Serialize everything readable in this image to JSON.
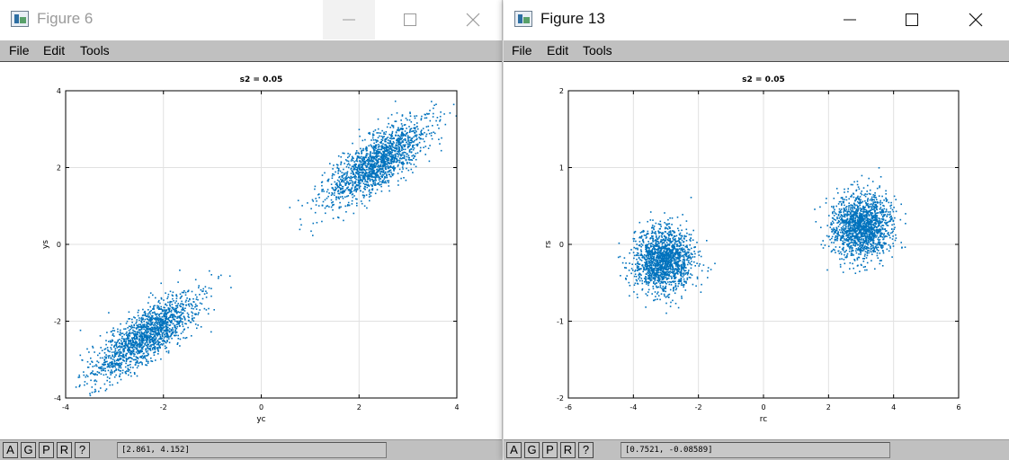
{
  "windows": [
    {
      "title": "Figure 6",
      "active": false,
      "menu": [
        "File",
        "Edit",
        "Tools"
      ],
      "statusbar": {
        "buttons": [
          "A",
          "G",
          "P",
          "R",
          "?"
        ],
        "coords": "[2.861, 4.152]"
      },
      "chart_data": {
        "type": "scatter",
        "title": "s2 = 0.05",
        "xlabel": "yc",
        "ylabel": "ys",
        "xlim": [
          -4,
          4
        ],
        "ylim": [
          -4,
          4
        ],
        "xticks": [
          -4,
          -2,
          0,
          2,
          4
        ],
        "yticks": [
          -4,
          -2,
          0,
          2,
          4
        ],
        "grid": true,
        "color": "#0072bd",
        "series": [
          {
            "clusters": [
              {
                "center": [
                  -2.35,
                  -2.35
                ],
                "spread_along": 0.65,
                "spread_across": 0.22,
                "slope": 1.0,
                "n": 1600
              },
              {
                "center": [
                  2.35,
                  2.15
                ],
                "spread_along": 0.65,
                "spread_across": 0.22,
                "slope": 1.0,
                "n": 1600
              }
            ]
          }
        ]
      }
    },
    {
      "title": "Figure 13",
      "active": true,
      "menu": [
        "File",
        "Edit",
        "Tools"
      ],
      "statusbar": {
        "buttons": [
          "A",
          "G",
          "P",
          "R",
          "?"
        ],
        "coords": "[0.7521, -0.08589]"
      },
      "chart_data": {
        "type": "scatter",
        "title": "s2 = 0.05",
        "xlabel": "rc",
        "ylabel": "rs",
        "xlim": [
          -6,
          6
        ],
        "ylim": [
          -2,
          2
        ],
        "xticks": [
          -6,
          -4,
          -2,
          0,
          2,
          4,
          6
        ],
        "yticks": [
          -2,
          -1,
          0,
          1,
          2
        ],
        "grid": true,
        "color": "#0072bd",
        "series": [
          {
            "clusters": [
              {
                "center": [
                  -3.1,
                  -0.2
                ],
                "spread_along": 0.5,
                "spread_across": 0.45,
                "slope": 3.8,
                "n": 1600
              },
              {
                "center": [
                  3.0,
                  0.25
                ],
                "spread_along": 0.5,
                "spread_across": 0.45,
                "slope": 3.8,
                "n": 1600
              }
            ]
          }
        ]
      }
    }
  ]
}
